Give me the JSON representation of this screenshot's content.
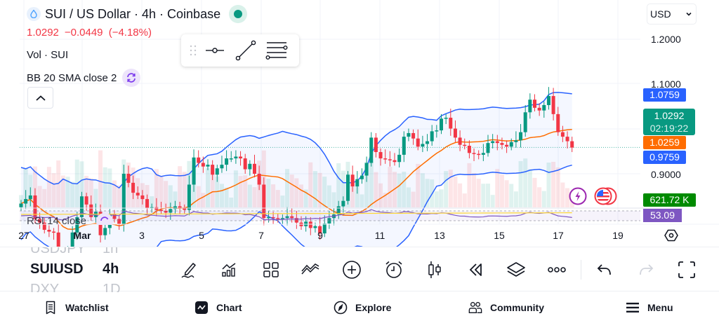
{
  "header": {
    "symbol_title": "SUI / US Dollar · 4h · Coinbase",
    "last_price": "1.0292",
    "change": "−0.0449",
    "change_pct": "(−4.18%)",
    "market_status": "open",
    "volume_indicator": "Vol · SUI",
    "bb_indicator": "BB 20 SMA close 2",
    "rsi_indicator": "RSI 14 close"
  },
  "currency_select": {
    "value": "USD"
  },
  "drawing_toolbar": {
    "tools": [
      {
        "name": "horizontal-line-tool"
      },
      {
        "name": "trend-line-tool"
      },
      {
        "name": "fib-retracement-tool"
      }
    ]
  },
  "price_axis": {
    "labels": [
      "1.2000",
      "1.1000",
      "0.9000"
    ],
    "tags": {
      "bb_upper": {
        "value": "1.0759",
        "color": "#2962ff"
      },
      "last": {
        "value": "1.0292",
        "countdown": "02:19:22",
        "color": "#089981"
      },
      "bb_basis": {
        "value": "1.0259",
        "color": "#ff6d00"
      },
      "bb_lower": {
        "value": "0.9759",
        "color": "#2962ff"
      },
      "volume": {
        "value": "621.72 K",
        "color": "#008a00"
      },
      "rsi": {
        "value": "53.09",
        "color": "#7e57c2"
      }
    }
  },
  "time_axis": {
    "labels": [
      "27",
      "Mar",
      "3",
      "5",
      "7",
      "9",
      "11",
      "13",
      "15",
      "17",
      "19"
    ]
  },
  "colors": {
    "up": "#089981",
    "down": "#f23645",
    "bb_band": "#2962ff",
    "bb_basis": "#ff6d00",
    "rsi_line": "#7e57c2",
    "rsi_ma": "#fdd835"
  },
  "chart_data": {
    "type": "candlestick",
    "title": "SUI / US Dollar · 4h · Coinbase",
    "x_labels": [
      "27",
      "Mar",
      "3",
      "5",
      "7",
      "9",
      "11",
      "13",
      "15",
      "17",
      "19"
    ],
    "y_ticks": [
      1.2,
      1.1,
      0.9
    ],
    "last_close": 1.0292,
    "bollinger": {
      "upper": 1.0759,
      "basis": 1.0259,
      "lower": 0.9759
    },
    "volume_last": "621.72 K",
    "rsi_last": 53.09,
    "candles_close": [
      0.967,
      0.972,
      0.976,
      0.95,
      0.946,
      0.938,
      0.936,
      0.935,
      0.905,
      0.89,
      0.912,
      0.935,
      0.952,
      0.975,
      0.966,
      0.952,
      0.958,
      0.932,
      0.94,
      0.955,
      0.95,
      0.944,
      1.0,
      0.99,
      0.979,
      0.976,
      0.972,
      0.962,
      0.963,
      0.96,
      0.959,
      0.957,
      0.961,
      0.964,
      0.962,
      0.96,
      0.988,
      1.018,
      1.012,
      1.008,
      1.01,
      0.999,
      1.006,
      1.01,
      1.017,
      1.017,
      1.019,
      1.017,
      1.005,
      1.011,
      1.0,
      0.988,
      0.951,
      0.952,
      0.951,
      0.95,
      0.951,
      0.953,
      0.951,
      0.946,
      0.942,
      0.947,
      0.94,
      0.942,
      0.934,
      0.945,
      0.951,
      0.955,
      0.964,
      0.97,
      0.999,
      0.986,
      0.994,
      0.998,
      1.012,
      1.04,
      1.024,
      1.017,
      1.016,
      1.015,
      1.013,
      1.021,
      1.041,
      1.045,
      1.039,
      1.03,
      1.033,
      1.036,
      1.047,
      1.048,
      1.061,
      1.062,
      1.05,
      1.04,
      1.032,
      1.031,
      1.023,
      1.022,
      1.021,
      1.023,
      1.034,
      1.036,
      1.034,
      1.032,
      1.03,
      1.035,
      1.037,
      1.046,
      1.068,
      1.082,
      1.073,
      1.07,
      1.076,
      1.086,
      1.066,
      1.046,
      1.041,
      1.036,
      1.029
    ]
  },
  "bottom_toolbar": {
    "symbols": [
      {
        "symbol": "USDJPY",
        "interval": "1h",
        "state": "prev"
      },
      {
        "symbol": "SUIUSD",
        "interval": "4h",
        "state": "active"
      },
      {
        "symbol": "DXY",
        "interval": "1D",
        "state": "next"
      }
    ],
    "buttons": [
      "draw",
      "indicators",
      "layouts",
      "compare",
      "add",
      "alert",
      "chart-type",
      "replay",
      "objects-tree",
      "more",
      "undo",
      "redo",
      "fullscreen"
    ]
  },
  "bottom_nav": {
    "items": [
      {
        "label": "Watchlist"
      },
      {
        "label": "Chart"
      },
      {
        "label": "Explore"
      },
      {
        "label": "Community"
      },
      {
        "label": "Menu"
      }
    ]
  }
}
